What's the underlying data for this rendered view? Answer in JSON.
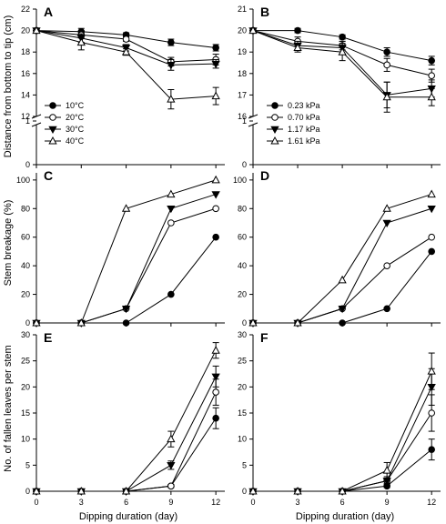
{
  "figure": {
    "ylabels": {
      "row1": "Distance from bottom to tip (cm)",
      "row2": "Stem breakage (%)",
      "row3": "No. of fallen leaves per stem"
    },
    "xlabel": "Dipping duration (day)"
  },
  "chart_data": [
    {
      "panel": "A",
      "type": "line",
      "xlabel": "",
      "ylabel": "Distance from bottom to tip (cm)",
      "x": [
        0,
        3,
        6,
        9,
        12
      ],
      "xlim": [
        0,
        12.6
      ],
      "yticks": [
        0,
        1,
        12,
        14,
        16,
        18,
        20,
        22
      ],
      "ybreak": [
        1,
        12
      ],
      "legend_position": "lower-left",
      "series": [
        {
          "name": "10°C",
          "marker": "filled-circle",
          "values": [
            20,
            19.9,
            19.6,
            18.9,
            18.4
          ],
          "err": [
            0,
            0.3,
            0.2,
            0.3,
            0.3
          ]
        },
        {
          "name": "20°C",
          "marker": "open-circle",
          "values": [
            20,
            19.6,
            19.2,
            17.1,
            17.3
          ],
          "err": [
            0,
            0.3,
            0.2,
            0.4,
            0.5
          ]
        },
        {
          "name": "30°C",
          "marker": "filled-triangle-down",
          "values": [
            20,
            19.3,
            18.4,
            16.8,
            16.9
          ],
          "err": [
            0,
            0.4,
            0.3,
            0.5,
            0.4
          ]
        },
        {
          "name": "40°C",
          "marker": "open-triangle-up",
          "values": [
            20,
            18.9,
            18.0,
            13.6,
            13.9
          ],
          "err": [
            0,
            0.7,
            0.3,
            0.9,
            0.8
          ]
        }
      ]
    },
    {
      "panel": "B",
      "type": "line",
      "xlabel": "",
      "ylabel": "",
      "x": [
        0,
        3,
        6,
        9,
        12
      ],
      "xlim": [
        0,
        12.6
      ],
      "yticks": [
        0,
        1,
        16,
        17,
        18,
        19,
        20,
        21
      ],
      "ybreak": [
        1,
        16
      ],
      "legend_position": "lower-left",
      "series": [
        {
          "name": "0.23 kPa",
          "marker": "filled-circle",
          "values": [
            20,
            20.0,
            19.7,
            19.0,
            18.6
          ],
          "err": [
            0,
            0.1,
            0.1,
            0.2,
            0.2
          ]
        },
        {
          "name": "0.70 kPa",
          "marker": "open-circle",
          "values": [
            20,
            19.5,
            19.3,
            18.4,
            17.9
          ],
          "err": [
            0,
            0.2,
            0.2,
            0.3,
            0.3
          ]
        },
        {
          "name": "1.17 kPa",
          "marker": "filled-triangle-down",
          "values": [
            20,
            19.3,
            19.2,
            17.0,
            17.3
          ],
          "err": [
            0,
            0.2,
            0.3,
            0.6,
            0.4
          ]
        },
        {
          "name": "1.61 kPa",
          "marker": "open-triangle-up",
          "values": [
            20,
            19.2,
            19.0,
            16.9,
            16.9
          ],
          "err": [
            0,
            0.2,
            0.4,
            0.7,
            0.4
          ]
        }
      ]
    },
    {
      "panel": "C",
      "type": "line",
      "xlabel": "",
      "ylabel": "Stem breakage (%)",
      "x": [
        0,
        3,
        6,
        9,
        12
      ],
      "xlim": [
        0,
        12.6
      ],
      "ylim": [
        0,
        105
      ],
      "yticks": [
        0,
        20,
        40,
        60,
        80,
        100
      ],
      "series": [
        {
          "name": "10°C",
          "marker": "filled-circle",
          "values": [
            0,
            0,
            0,
            20,
            60
          ]
        },
        {
          "name": "20°C",
          "marker": "open-circle",
          "values": [
            0,
            0,
            10,
            70,
            80
          ]
        },
        {
          "name": "30°C",
          "marker": "filled-triangle-down",
          "values": [
            0,
            0,
            10,
            80,
            90
          ]
        },
        {
          "name": "40°C",
          "marker": "open-triangle-up",
          "values": [
            0,
            0,
            80,
            90,
            100
          ]
        }
      ]
    },
    {
      "panel": "D",
      "type": "line",
      "xlabel": "",
      "ylabel": "",
      "x": [
        0,
        3,
        6,
        9,
        12
      ],
      "xlim": [
        0,
        12.6
      ],
      "ylim": [
        0,
        105
      ],
      "yticks": [
        0,
        20,
        40,
        60,
        80,
        100
      ],
      "series": [
        {
          "name": "0.23 kPa",
          "marker": "filled-circle",
          "values": [
            0,
            0,
            0,
            10,
            50
          ]
        },
        {
          "name": "0.70 kPa",
          "marker": "open-circle",
          "values": [
            0,
            0,
            10,
            40,
            60
          ]
        },
        {
          "name": "1.17 kPa",
          "marker": "filled-triangle-down",
          "values": [
            0,
            0,
            10,
            70,
            80
          ]
        },
        {
          "name": "1.61 kPa",
          "marker": "open-triangle-up",
          "values": [
            0,
            0,
            30,
            80,
            90
          ]
        }
      ]
    },
    {
      "panel": "E",
      "type": "line",
      "xlabel": "Dipping duration (day)",
      "ylabel": "No. of fallen leaves per stem",
      "x": [
        0,
        3,
        6,
        9,
        12
      ],
      "xlim": [
        0,
        12.6
      ],
      "ylim": [
        0,
        30
      ],
      "xticks": [
        0,
        3,
        6,
        9,
        12
      ],
      "yticks": [
        0,
        5,
        10,
        15,
        20,
        25,
        30
      ],
      "series": [
        {
          "name": "10°C",
          "marker": "filled-circle",
          "values": [
            0,
            0,
            0,
            1,
            14
          ],
          "err": [
            0,
            0,
            0,
            0.2,
            2
          ]
        },
        {
          "name": "20°C",
          "marker": "open-circle",
          "values": [
            0,
            0,
            0,
            1,
            19
          ],
          "err": [
            0,
            0,
            0,
            0.3,
            2.5
          ]
        },
        {
          "name": "30°C",
          "marker": "filled-triangle-down",
          "values": [
            0,
            0,
            0,
            5,
            22
          ],
          "err": [
            0,
            0,
            0,
            0.8,
            2
          ]
        },
        {
          "name": "40°C",
          "marker": "open-triangle-up",
          "values": [
            0,
            0,
            0,
            10,
            27
          ],
          "err": [
            0,
            0,
            0,
            1.5,
            1.5
          ]
        }
      ]
    },
    {
      "panel": "F",
      "type": "line",
      "xlabel": "Dipping duration (day)",
      "ylabel": "",
      "x": [
        0,
        3,
        6,
        9,
        12
      ],
      "xlim": [
        0,
        12.6
      ],
      "ylim": [
        0,
        30
      ],
      "xticks": [
        0,
        3,
        6,
        9,
        12
      ],
      "yticks": [
        0,
        5,
        10,
        15,
        20,
        25,
        30
      ],
      "series": [
        {
          "name": "0.23 kPa",
          "marker": "filled-circle",
          "values": [
            0,
            0,
            0,
            1,
            8
          ],
          "err": [
            0,
            0,
            0,
            0.3,
            2
          ]
        },
        {
          "name": "0.70 kPa",
          "marker": "open-circle",
          "values": [
            0,
            0,
            0,
            2,
            15
          ],
          "err": [
            0,
            0,
            0,
            0.5,
            3.5
          ]
        },
        {
          "name": "1.17 kPa",
          "marker": "filled-triangle-down",
          "values": [
            0,
            0,
            0,
            2,
            20
          ],
          "err": [
            0,
            0,
            0,
            0.8,
            3.5
          ]
        },
        {
          "name": "1.61 kPa",
          "marker": "open-triangle-up",
          "values": [
            0,
            0,
            0,
            4,
            23
          ],
          "err": [
            0,
            0,
            0,
            1.5,
            3.5
          ]
        }
      ]
    }
  ]
}
